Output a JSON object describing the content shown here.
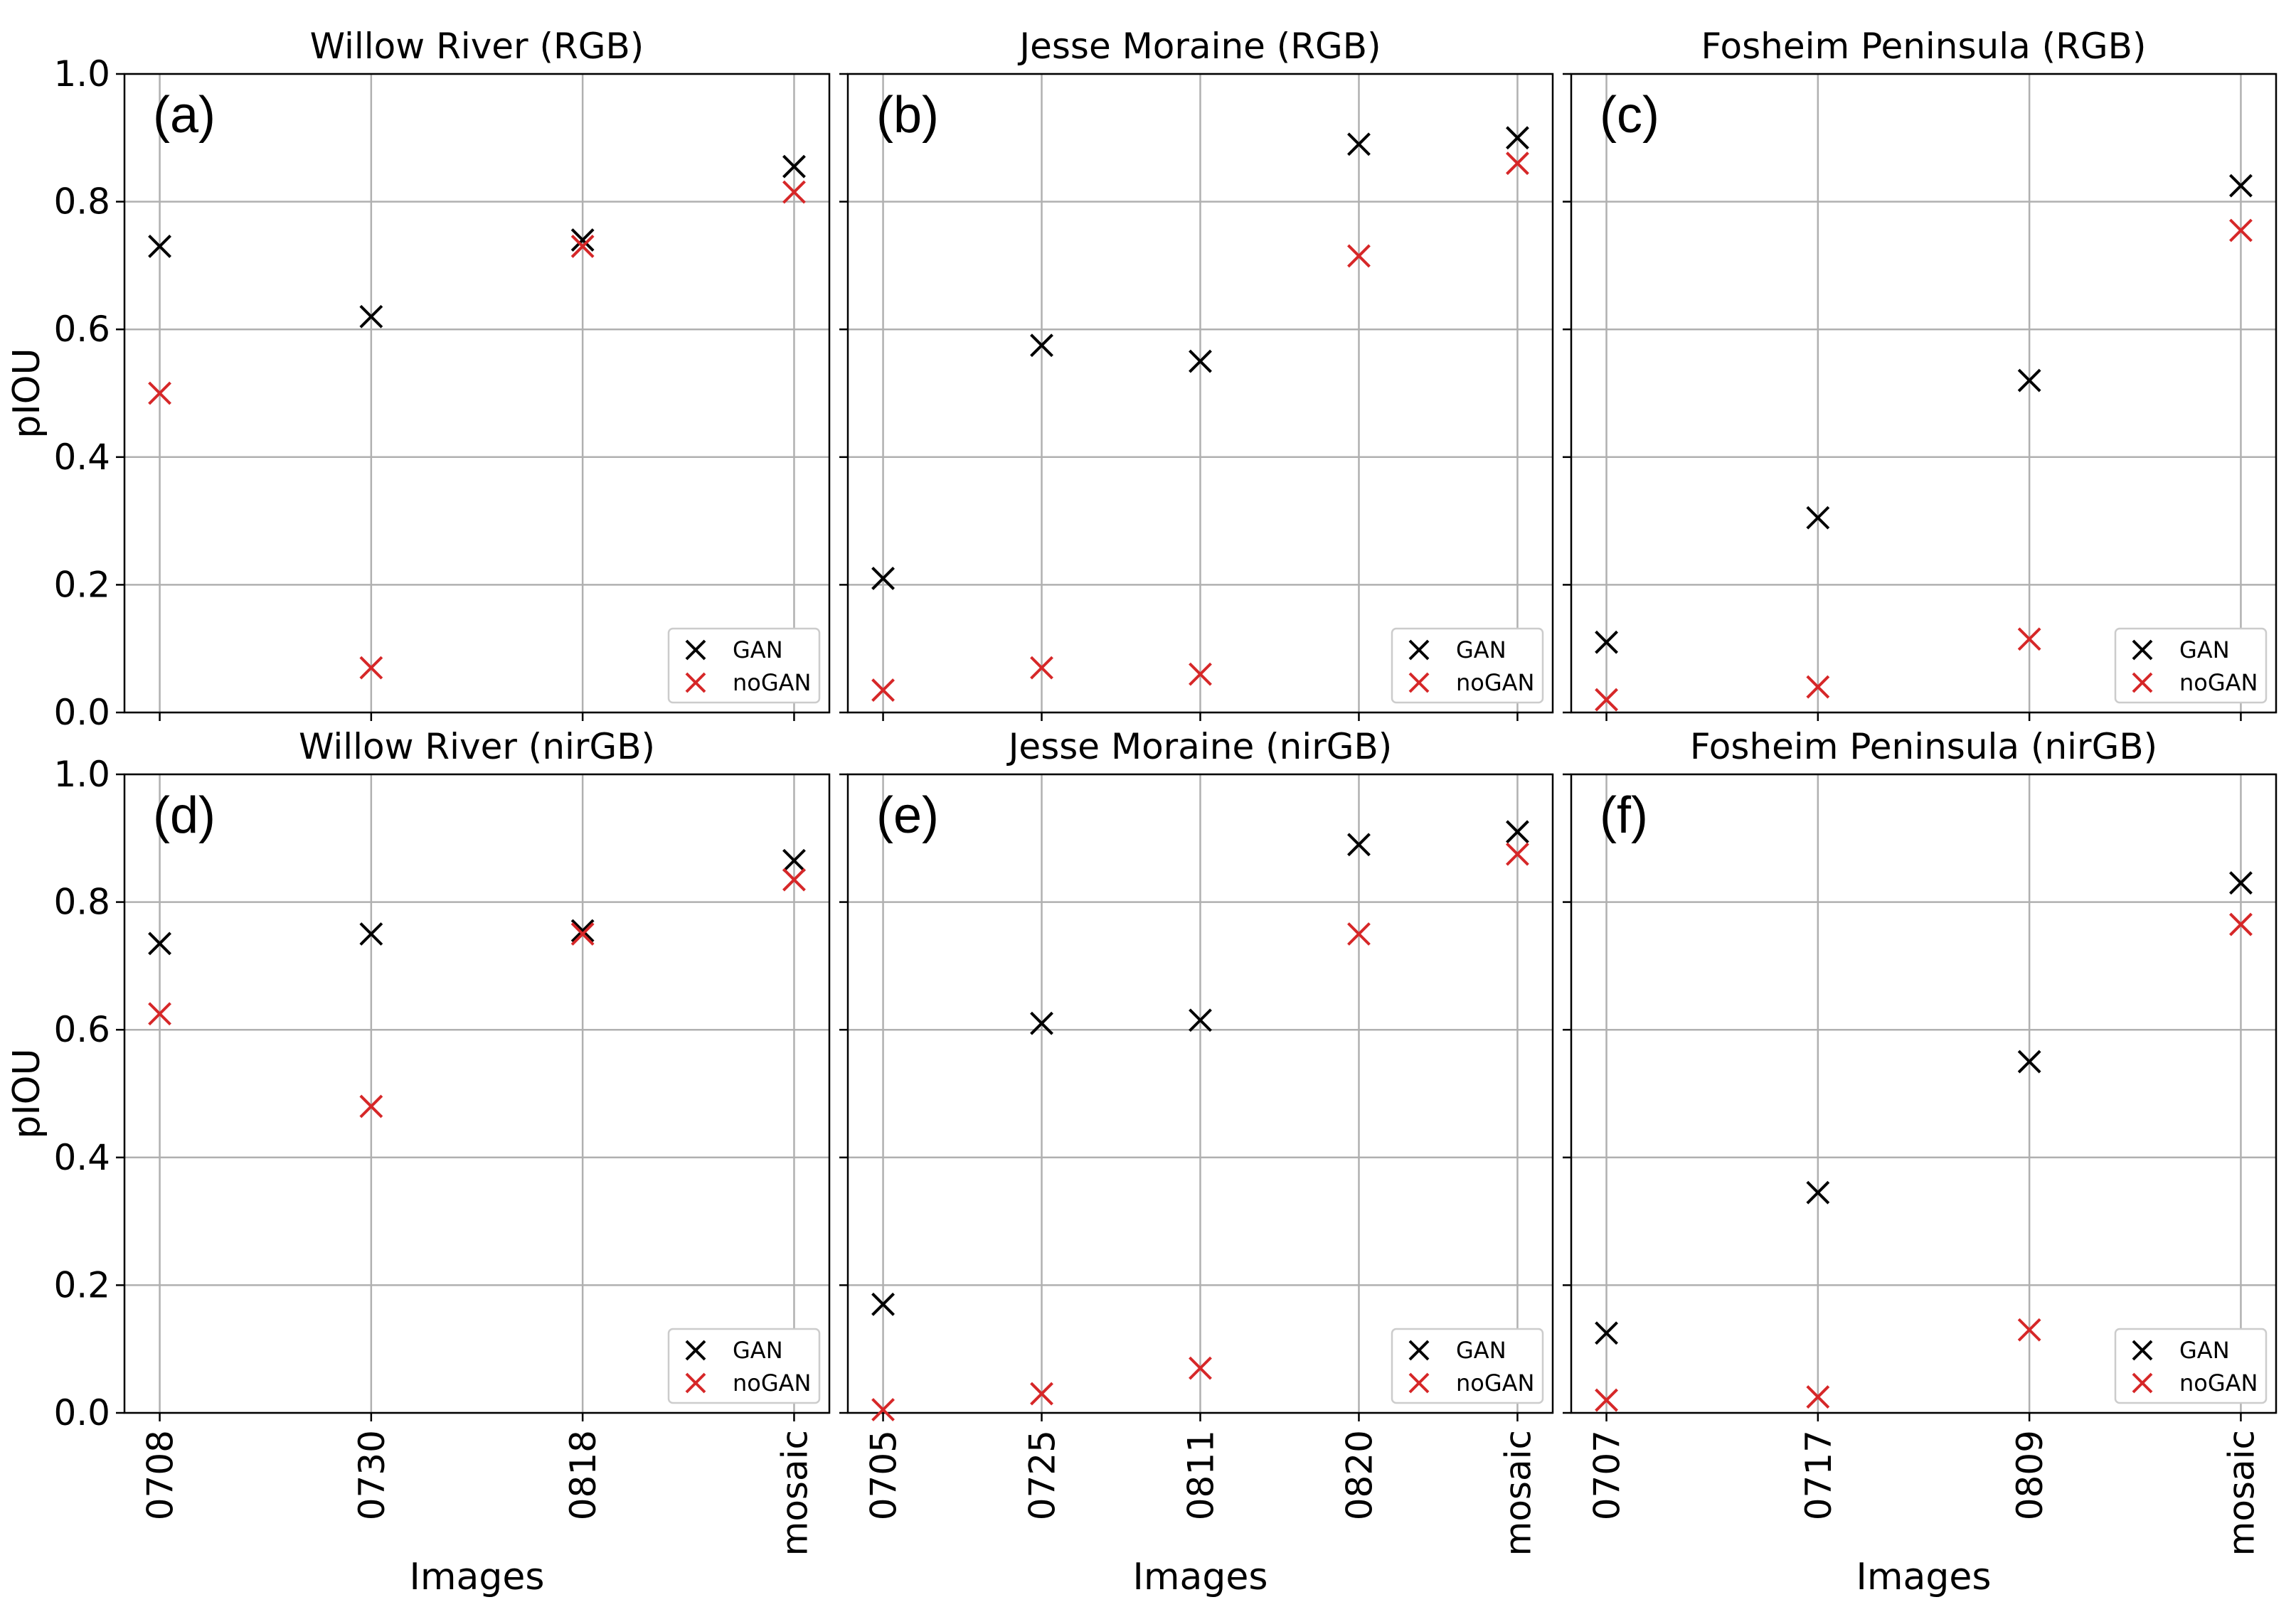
{
  "figure": {
    "ylabel": "pIOU",
    "xlabel": "Images",
    "legend_labels": [
      "GAN",
      "noGAN"
    ],
    "colors": {
      "GAN": "#000000",
      "noGAN": "#d62728"
    },
    "yticks": [
      "0.0",
      "0.2",
      "0.4",
      "0.6",
      "0.8",
      "1.0"
    ]
  },
  "chart_data": [
    {
      "type": "scatter",
      "panel_label": "(a)",
      "title": "Willow River (RGB)",
      "categories": [
        "0708",
        "0730",
        "0818",
        "mosaic"
      ],
      "series": [
        {
          "name": "GAN",
          "values": [
            0.73,
            0.62,
            0.74,
            0.855
          ]
        },
        {
          "name": "noGAN",
          "values": [
            0.5,
            0.07,
            0.73,
            0.815
          ]
        }
      ],
      "ylim": [
        0,
        1
      ],
      "xlabel": "",
      "ylabel": "pIOU",
      "legend": "bottom-right",
      "grid": true
    },
    {
      "type": "scatter",
      "panel_label": "(b)",
      "title": "Jesse Moraine (RGB)",
      "categories": [
        "0705",
        "0725",
        "0811",
        "0820",
        "mosaic"
      ],
      "series": [
        {
          "name": "GAN",
          "values": [
            0.21,
            0.575,
            0.55,
            0.89,
            0.9
          ]
        },
        {
          "name": "noGAN",
          "values": [
            0.035,
            0.07,
            0.06,
            0.715,
            0.86
          ]
        }
      ],
      "ylim": [
        0,
        1
      ],
      "xlabel": "",
      "ylabel": "",
      "legend": "bottom-right",
      "grid": true
    },
    {
      "type": "scatter",
      "panel_label": "(c)",
      "title": "Fosheim Peninsula (RGB)",
      "categories": [
        "0707",
        "0717",
        "0809",
        "mosaic"
      ],
      "series": [
        {
          "name": "GAN",
          "values": [
            0.11,
            0.305,
            0.52,
            0.825
          ]
        },
        {
          "name": "noGAN",
          "values": [
            0.02,
            0.04,
            0.115,
            0.755
          ]
        }
      ],
      "ylim": [
        0,
        1
      ],
      "xlabel": "",
      "ylabel": "",
      "legend": "bottom-right",
      "grid": true
    },
    {
      "type": "scatter",
      "panel_label": "(d)",
      "title": "Willow River (nirGB)",
      "categories": [
        "0708",
        "0730",
        "0818",
        "mosaic"
      ],
      "series": [
        {
          "name": "GAN",
          "values": [
            0.735,
            0.75,
            0.755,
            0.865
          ]
        },
        {
          "name": "noGAN",
          "values": [
            0.625,
            0.48,
            0.75,
            0.835
          ]
        }
      ],
      "ylim": [
        0,
        1
      ],
      "xlabel": "Images",
      "ylabel": "pIOU",
      "legend": "bottom-right",
      "grid": true
    },
    {
      "type": "scatter",
      "panel_label": "(e)",
      "title": "Jesse Moraine (nirGB)",
      "categories": [
        "0705",
        "0725",
        "0811",
        "0820",
        "mosaic"
      ],
      "series": [
        {
          "name": "GAN",
          "values": [
            0.17,
            0.61,
            0.615,
            0.89,
            0.91
          ]
        },
        {
          "name": "noGAN",
          "values": [
            0.005,
            0.03,
            0.07,
            0.75,
            0.875
          ]
        }
      ],
      "ylim": [
        0,
        1
      ],
      "xlabel": "Images",
      "ylabel": "",
      "legend": "bottom-right",
      "grid": true
    },
    {
      "type": "scatter",
      "panel_label": "(f)",
      "title": "Fosheim Peninsula (nirGB)",
      "categories": [
        "0707",
        "0717",
        "0809",
        "mosaic"
      ],
      "series": [
        {
          "name": "GAN",
          "values": [
            0.125,
            0.345,
            0.55,
            0.83
          ]
        },
        {
          "name": "noGAN",
          "values": [
            0.02,
            0.025,
            0.13,
            0.765
          ]
        }
      ],
      "ylim": [
        0,
        1
      ],
      "xlabel": "Images",
      "ylabel": "",
      "legend": "bottom-right",
      "grid": true
    }
  ]
}
